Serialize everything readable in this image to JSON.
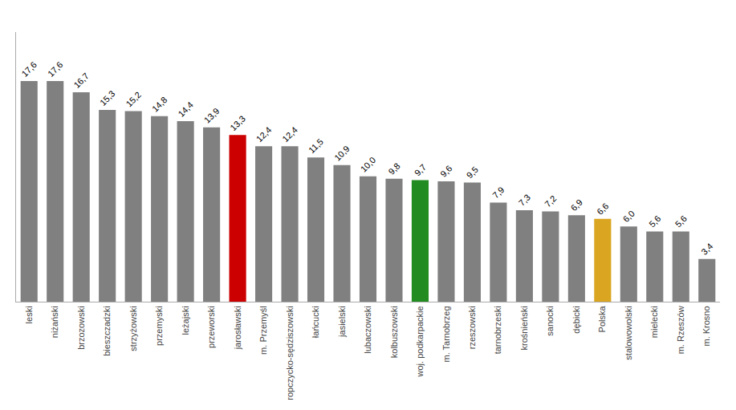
{
  "chart_data": {
    "type": "bar",
    "categories": [
      "leski",
      "niżański",
      "brzozowski",
      "bieszczadzki",
      "strzyżowski",
      "przemyski",
      "leżajski",
      "przeworski",
      "jarosławski",
      "m. Przemyśl",
      "ropczycko-sędziszowski",
      "łańcucki",
      "jasielski",
      "lubaczowski",
      "kolbuszowski",
      "woj. podkarpackie",
      "m. Tarnobrzeg",
      "rzeszowski",
      "tarnobrzeski",
      "krośnieński",
      "sanocki",
      "dębicki",
      "Polska",
      "stalowowolski",
      "mielecki",
      "m. Rzeszów",
      "m. Krosno"
    ],
    "values": [
      17.6,
      17.6,
      16.7,
      15.3,
      15.2,
      14.8,
      14.4,
      13.9,
      13.3,
      12.4,
      12.4,
      11.5,
      10.9,
      10.0,
      9.8,
      9.7,
      9.6,
      9.5,
      7.9,
      7.3,
      7.2,
      6.9,
      6.6,
      6.0,
      5.6,
      5.6,
      3.4
    ],
    "value_labels": [
      "17,6",
      "17,6",
      "16,7",
      "15,3",
      "15,2",
      "14,8",
      "14,4",
      "13,9",
      "13,3",
      "12,4",
      "12,4",
      "11,5",
      "10,9",
      "10,0",
      "9,8",
      "9,7",
      "9,6",
      "9,5",
      "7,9",
      "7,3",
      "7,2",
      "6,9",
      "6,6",
      "6,0",
      "5,6",
      "5,6",
      "3,4"
    ],
    "colors": [
      "#808080",
      "#808080",
      "#808080",
      "#808080",
      "#808080",
      "#808080",
      "#808080",
      "#808080",
      "#cc0000",
      "#808080",
      "#808080",
      "#808080",
      "#808080",
      "#808080",
      "#808080",
      "#228B22",
      "#808080",
      "#808080",
      "#808080",
      "#808080",
      "#808080",
      "#808080",
      "#DAA520",
      "#808080",
      "#808080",
      "#808080",
      "#808080"
    ],
    "ylim": [
      0,
      21.5
    ],
    "data_labels": true,
    "tick_labels": "x",
    "grid": false
  }
}
